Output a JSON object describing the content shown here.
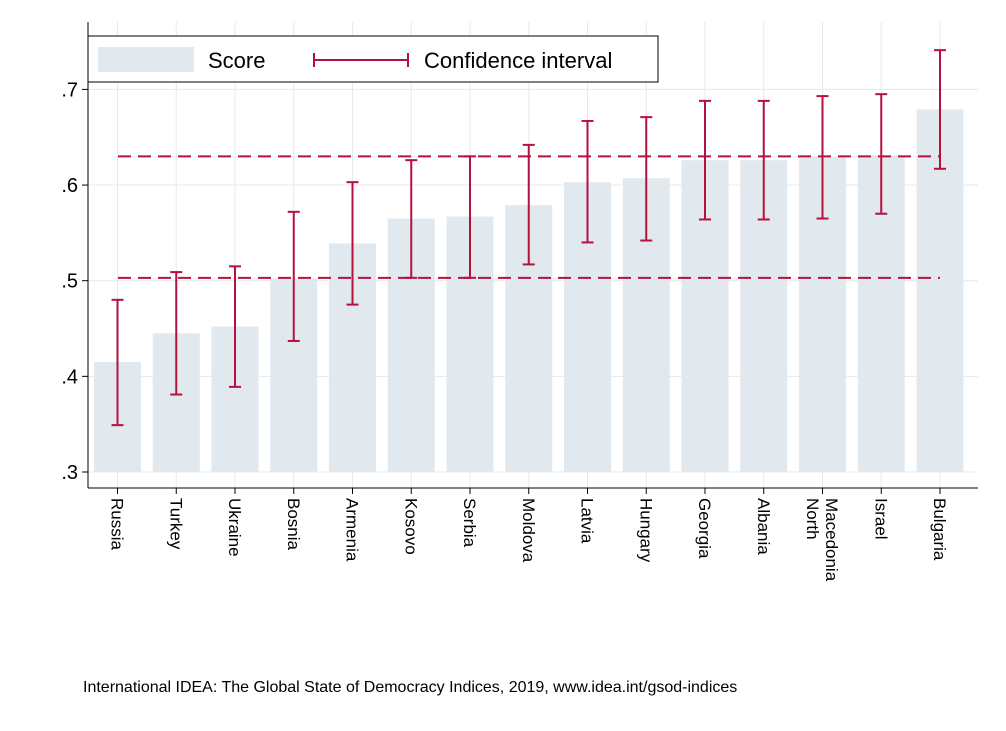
{
  "chart_data": {
    "type": "bar",
    "categories": [
      "Russia",
      "Turkey",
      "Ukraine",
      "Bosnia",
      "Armenia",
      "Kosovo",
      "Serbia",
      "Moldova",
      "Latvia",
      "Hungary",
      "Georgia",
      "Albania",
      "North Macedonia",
      "Israel",
      "Bulgaria"
    ],
    "category_label_lines": [
      [
        "Russia"
      ],
      [
        "Turkey"
      ],
      [
        "Ukraine"
      ],
      [
        "Bosnia"
      ],
      [
        "Armenia"
      ],
      [
        "Kosovo"
      ],
      [
        "Serbia"
      ],
      [
        "Moldova"
      ],
      [
        "Latvia"
      ],
      [
        "Hungary"
      ],
      [
        "Georgia"
      ],
      [
        "Albania"
      ],
      [
        "North",
        "Macedonia"
      ],
      [
        "Israel"
      ],
      [
        "Bulgaria"
      ]
    ],
    "series": [
      {
        "name": "Score",
        "values": [
          0.415,
          0.445,
          0.452,
          0.502,
          0.539,
          0.565,
          0.567,
          0.579,
          0.603,
          0.607,
          0.626,
          0.626,
          0.629,
          0.631,
          0.679
        ],
        "ci_low": [
          0.349,
          0.381,
          0.389,
          0.437,
          0.475,
          0.503,
          0.503,
          0.517,
          0.54,
          0.542,
          0.564,
          0.564,
          0.565,
          0.57,
          0.617
        ],
        "ci_high": [
          0.48,
          0.509,
          0.515,
          0.572,
          0.603,
          0.626,
          0.63,
          0.642,
          0.667,
          0.671,
          0.688,
          0.688,
          0.693,
          0.695,
          0.741
        ]
      }
    ],
    "reference_lines": [
      0.503,
      0.63
    ],
    "ylim": [
      0.3,
      0.76
    ],
    "yticks": [
      0.3,
      0.4,
      0.5,
      0.6,
      0.7
    ],
    "ytick_labels": [
      ".3",
      ".4",
      ".5",
      ".6",
      ".7"
    ],
    "title": "",
    "xlabel": "",
    "ylabel": "",
    "legend": {
      "placement": "top-left",
      "score_label": "Score",
      "ci_label": "Confidence interval"
    },
    "grid": true,
    "colors": {
      "bar": "#e1e9ef",
      "ci": "#b5113f",
      "reference": "#b5113f",
      "grid": "#e8e8e8",
      "axis": "#000000"
    }
  },
  "source_note": "International IDEA: The Global State of Democracy Indices, 2019, www.idea.int/gsod-indices"
}
